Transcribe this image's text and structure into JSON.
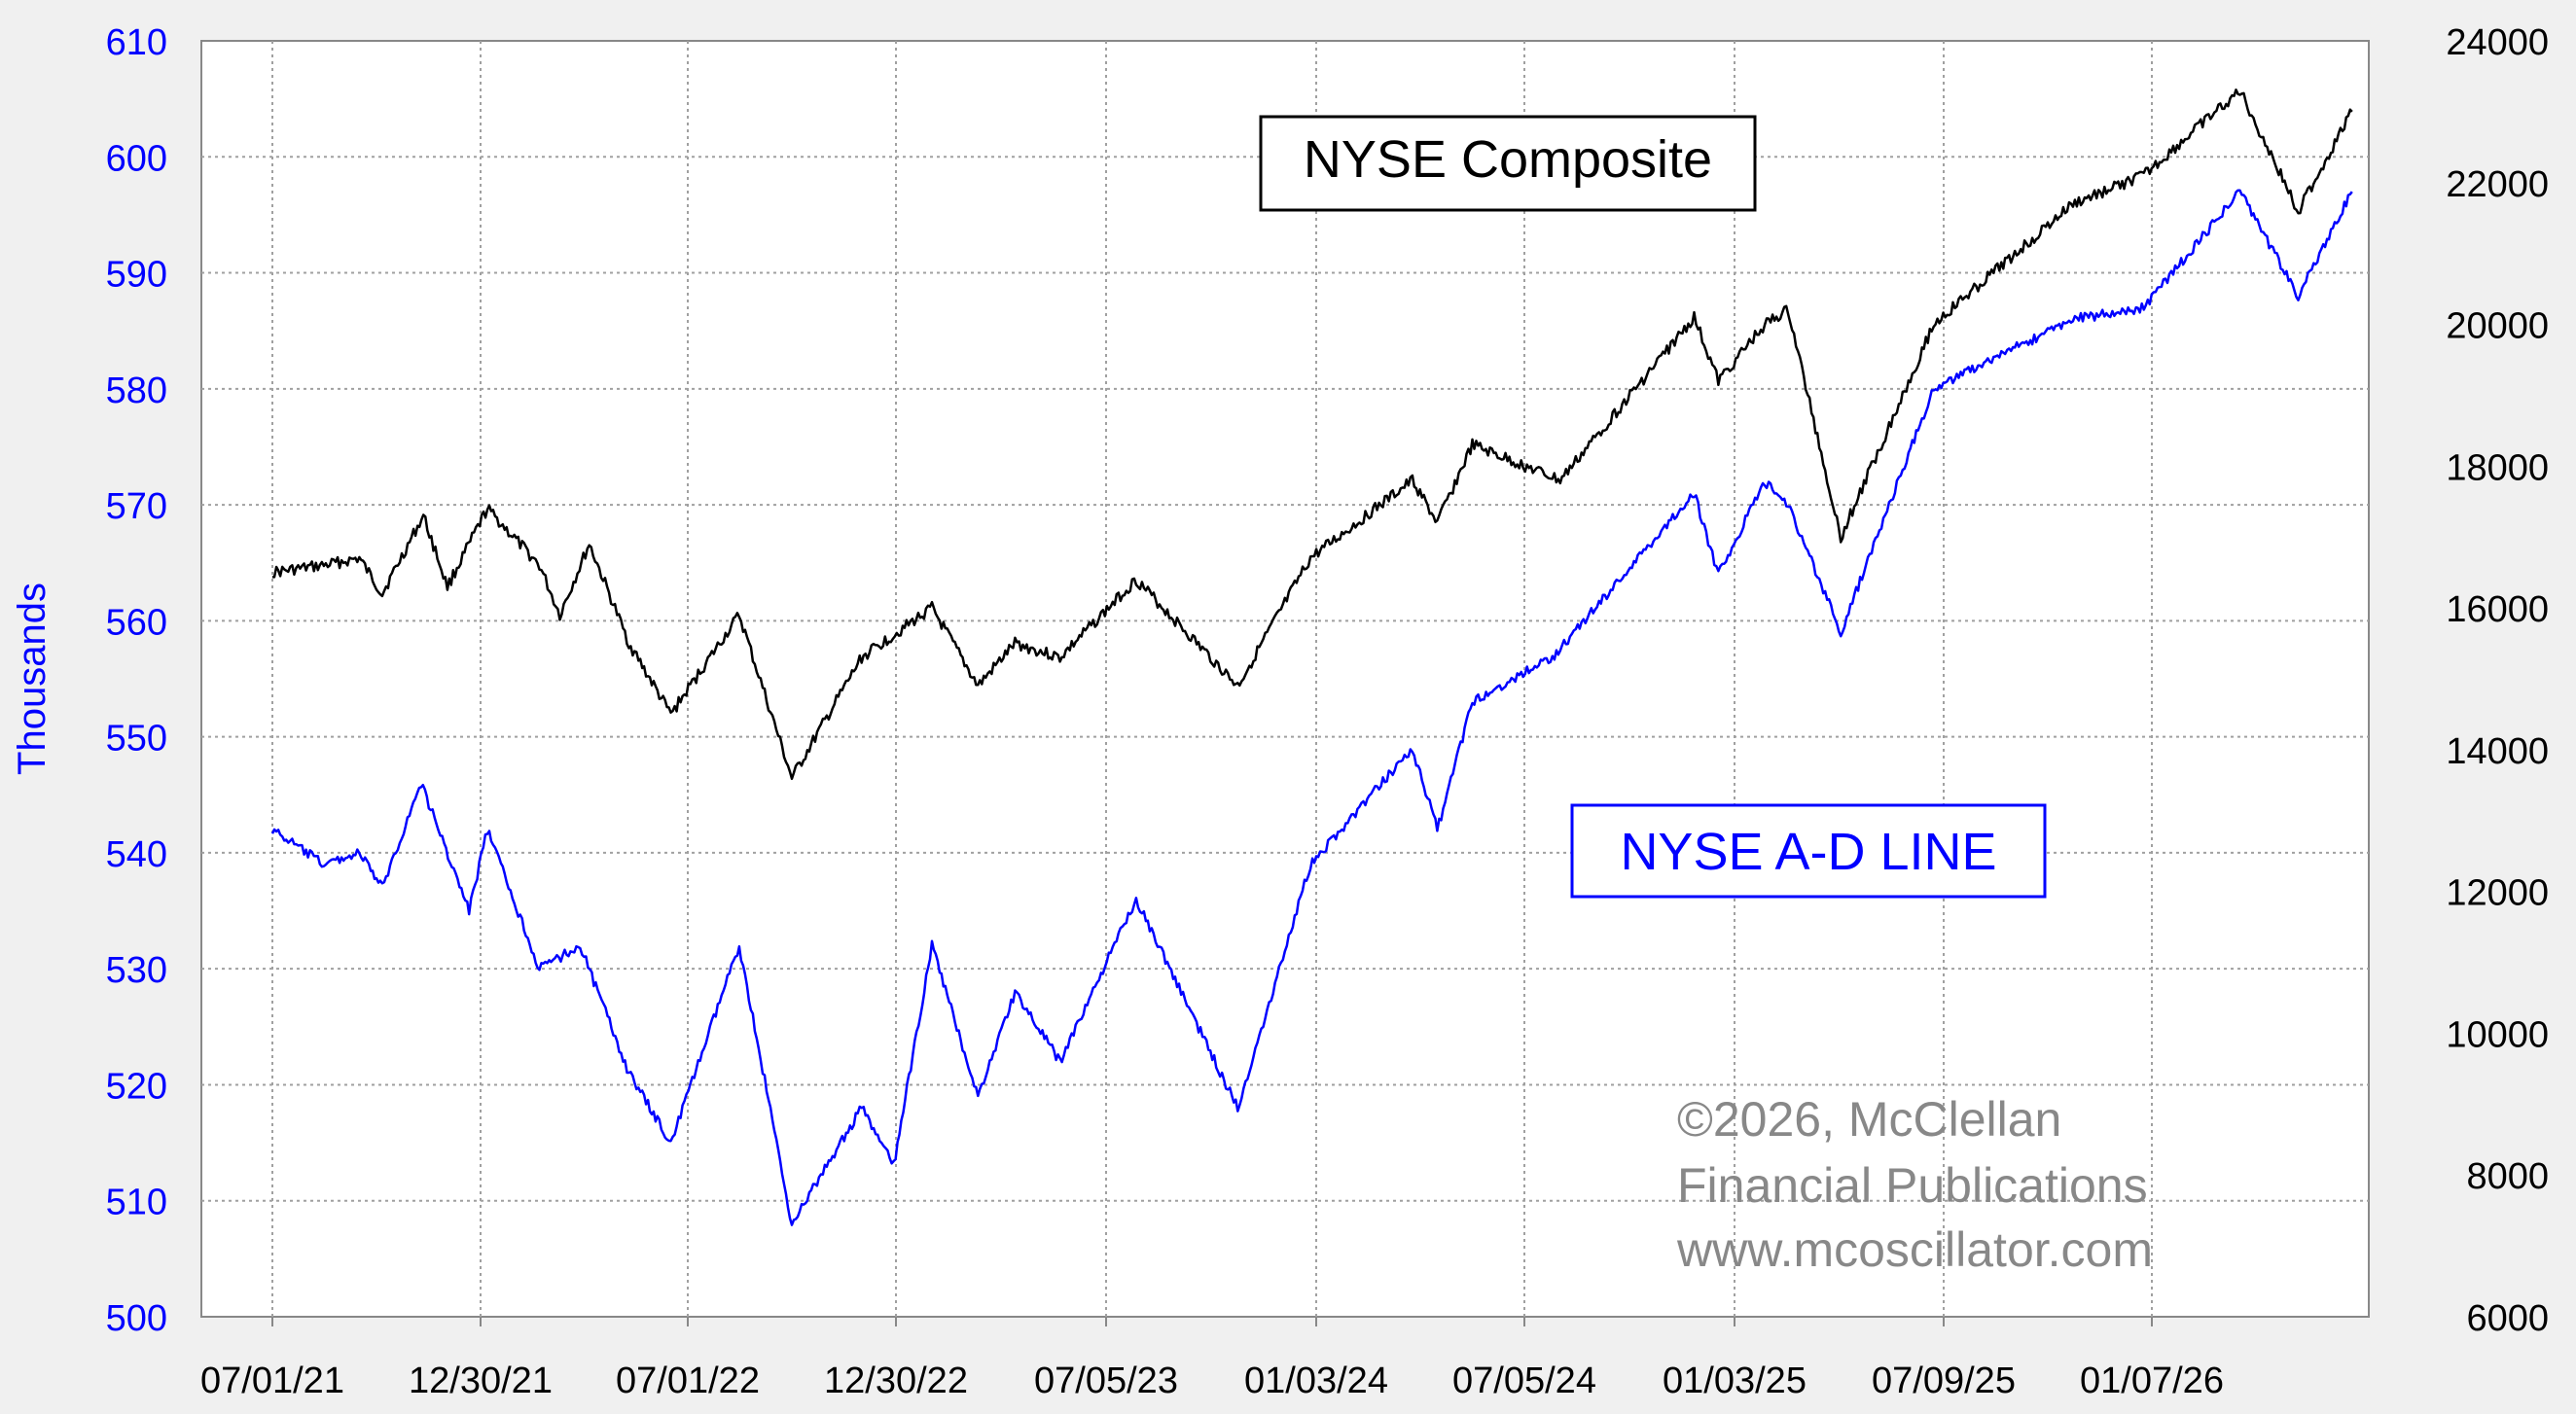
{
  "chart_data": {
    "type": "line",
    "y_axis_title": "Thousands",
    "x_ticks": [
      "07/01/21",
      "12/30/21",
      "07/01/22",
      "12/30/22",
      "07/05/23",
      "01/03/24",
      "07/05/24",
      "01/03/25",
      "07/09/25",
      "01/07/26"
    ],
    "left_axis": {
      "ticks": [
        "500",
        "510",
        "520",
        "530",
        "540",
        "550",
        "560",
        "570",
        "580",
        "590",
        "600",
        "610"
      ],
      "range": [
        500,
        610
      ]
    },
    "right_axis": {
      "ticks": [
        "6000",
        "8000",
        "10000",
        "12000",
        "14000",
        "16000",
        "18000",
        "20000",
        "22000",
        "24000"
      ],
      "range": [
        6000,
        24000
      ]
    },
    "grid": true,
    "x_range": [
      "2021-07-01",
      "2026-08-20"
    ],
    "series": [
      {
        "name": "NYSE Composite",
        "axis": "right",
        "color": "#000000",
        "points": [
          [
            "2021-07-01",
            16500
          ],
          [
            "2021-08-15",
            16600
          ],
          [
            "2021-09-15",
            16700
          ],
          [
            "2021-10-05",
            16200
          ],
          [
            "2021-11-10",
            17300
          ],
          [
            "2021-12-01",
            16300
          ],
          [
            "2022-01-05",
            17400
          ],
          [
            "2022-02-20",
            16600
          ],
          [
            "2022-03-10",
            15900
          ],
          [
            "2022-04-05",
            16900
          ],
          [
            "2022-05-10",
            15500
          ],
          [
            "2022-06-16",
            14500
          ],
          [
            "2022-08-15",
            15900
          ],
          [
            "2022-09-30",
            13600
          ],
          [
            "2022-11-30",
            15300
          ],
          [
            "2023-01-31",
            16000
          ],
          [
            "2023-03-13",
            14900
          ],
          [
            "2023-04-15",
            15500
          ],
          [
            "2023-05-25",
            15300
          ],
          [
            "2023-07-31",
            16400
          ],
          [
            "2023-10-27",
            14900
          ],
          [
            "2023-12-29",
            16700
          ],
          [
            "2024-03-28",
            17800
          ],
          [
            "2024-04-19",
            17200
          ],
          [
            "2024-05-20",
            18300
          ],
          [
            "2024-08-05",
            17800
          ],
          [
            "2024-11-29",
            20100
          ],
          [
            "2024-12-20",
            19200
          ],
          [
            "2025-01-30",
            20000
          ],
          [
            "2025-02-20",
            20200
          ],
          [
            "2025-04-08",
            17000
          ],
          [
            "2025-06-30",
            20000
          ],
          [
            "2025-10-30",
            21700
          ],
          [
            "2025-12-31",
            22100
          ],
          [
            "2026-03-25",
            23300
          ],
          [
            "2026-05-15",
            21600
          ],
          [
            "2026-07-01",
            23000
          ]
        ]
      },
      {
        "name": "NYSE A-D LINE",
        "axis": "left",
        "color": "#0000ff",
        "points": [
          [
            "2021-07-01",
            542
          ],
          [
            "2021-08-15",
            539
          ],
          [
            "2021-09-15",
            540
          ],
          [
            "2021-10-05",
            537
          ],
          [
            "2021-11-08",
            546
          ],
          [
            "2021-12-20",
            535
          ],
          [
            "2022-01-05",
            542
          ],
          [
            "2022-02-20",
            530
          ],
          [
            "2022-03-28",
            532
          ],
          [
            "2022-05-10",
            521
          ],
          [
            "2022-06-16",
            515
          ],
          [
            "2022-08-15",
            532
          ],
          [
            "2022-09-30",
            508
          ],
          [
            "2022-11-30",
            518
          ],
          [
            "2022-12-28",
            513
          ],
          [
            "2023-01-31",
            532
          ],
          [
            "2023-03-13",
            519
          ],
          [
            "2023-04-15",
            528
          ],
          [
            "2023-05-25",
            522
          ],
          [
            "2023-07-31",
            536
          ],
          [
            "2023-10-27",
            518
          ],
          [
            "2023-12-29",
            539
          ],
          [
            "2024-03-28",
            549
          ],
          [
            "2024-04-19",
            542
          ],
          [
            "2024-05-20",
            553
          ],
          [
            "2024-07-31",
            557
          ],
          [
            "2024-11-29",
            571
          ],
          [
            "2024-12-20",
            564
          ],
          [
            "2025-01-30",
            572
          ],
          [
            "2025-02-20",
            570
          ],
          [
            "2025-04-08",
            559
          ],
          [
            "2025-06-30",
            580
          ],
          [
            "2025-10-30",
            586
          ],
          [
            "2025-12-31",
            587
          ],
          [
            "2026-03-25",
            597
          ],
          [
            "2026-05-15",
            588
          ],
          [
            "2026-07-01",
            597
          ]
        ]
      }
    ],
    "annotations": [
      {
        "text": "NYSE Composite",
        "boxed": true,
        "color": "#000000"
      },
      {
        "text": "NYSE A-D LINE",
        "boxed": true,
        "color": "#0000ff"
      },
      {
        "text": "©2026, McClellan",
        "color": "#888888"
      },
      {
        "text": "Financial Publications",
        "color": "#888888"
      },
      {
        "text": "www.mcoscillator.com",
        "color": "#888888"
      }
    ]
  }
}
